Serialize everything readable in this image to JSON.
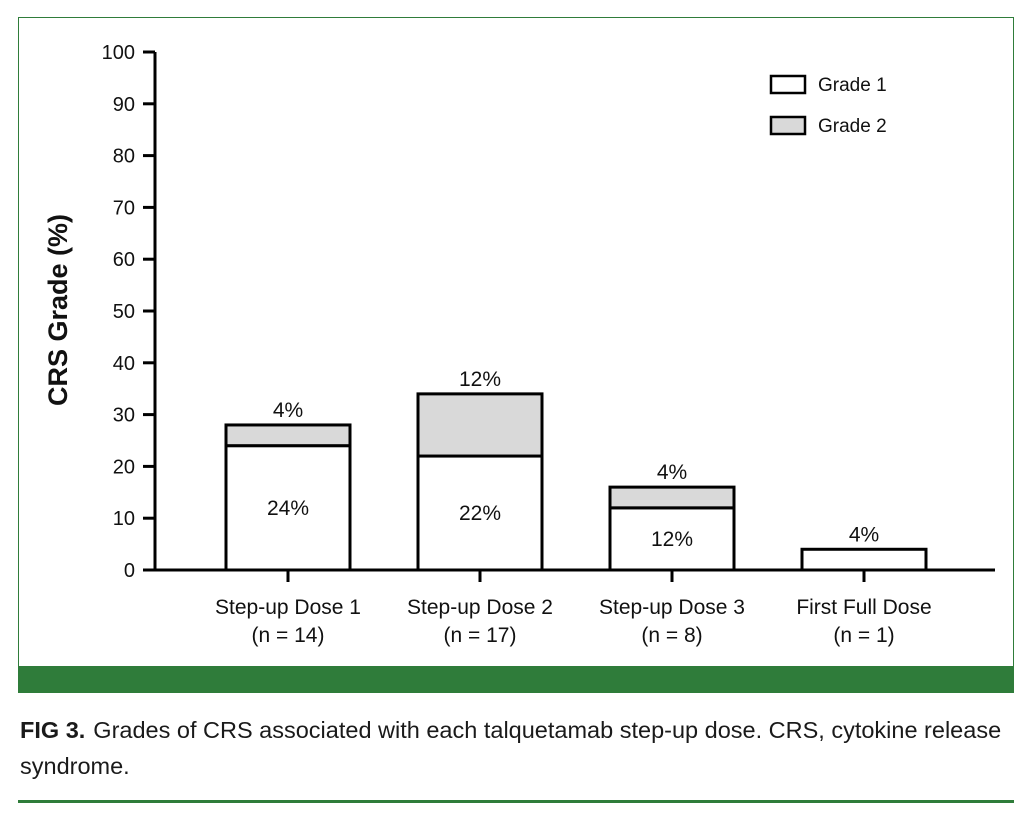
{
  "caption": {
    "label": "FIG 3.",
    "text": "Grades of CRS associated with each talquetamab step-up dose. CRS, cytokine release syndrome."
  },
  "colors": {
    "accent_green": "#2f7c3a",
    "grade1_fill": "#ffffff",
    "grade2_fill": "#d9d9d9",
    "stroke": "#000000"
  },
  "chart_data": {
    "type": "bar",
    "stacked": true,
    "ylabel": "CRS Grade (%)",
    "ylim": [
      0,
      100
    ],
    "yticks": [
      0,
      10,
      20,
      30,
      40,
      50,
      60,
      70,
      80,
      90,
      100
    ],
    "categories": [
      [
        "Step-up Dose 1",
        "(n = 14)"
      ],
      [
        "Step-up Dose 2",
        "(n = 17)"
      ],
      [
        "Step-up Dose 3",
        "(n = 8)"
      ],
      [
        "First Full Dose",
        "(n = 1)"
      ]
    ],
    "series": [
      {
        "name": "Grade 1",
        "values": [
          24,
          22,
          12,
          4
        ],
        "labels": [
          "24%",
          "22%",
          "12%",
          "4%"
        ]
      },
      {
        "name": "Grade 2",
        "values": [
          4,
          12,
          4,
          0
        ],
        "labels": [
          "4%",
          "12%",
          "4%",
          ""
        ]
      }
    ],
    "legend_position": "top-right",
    "grid": false
  }
}
